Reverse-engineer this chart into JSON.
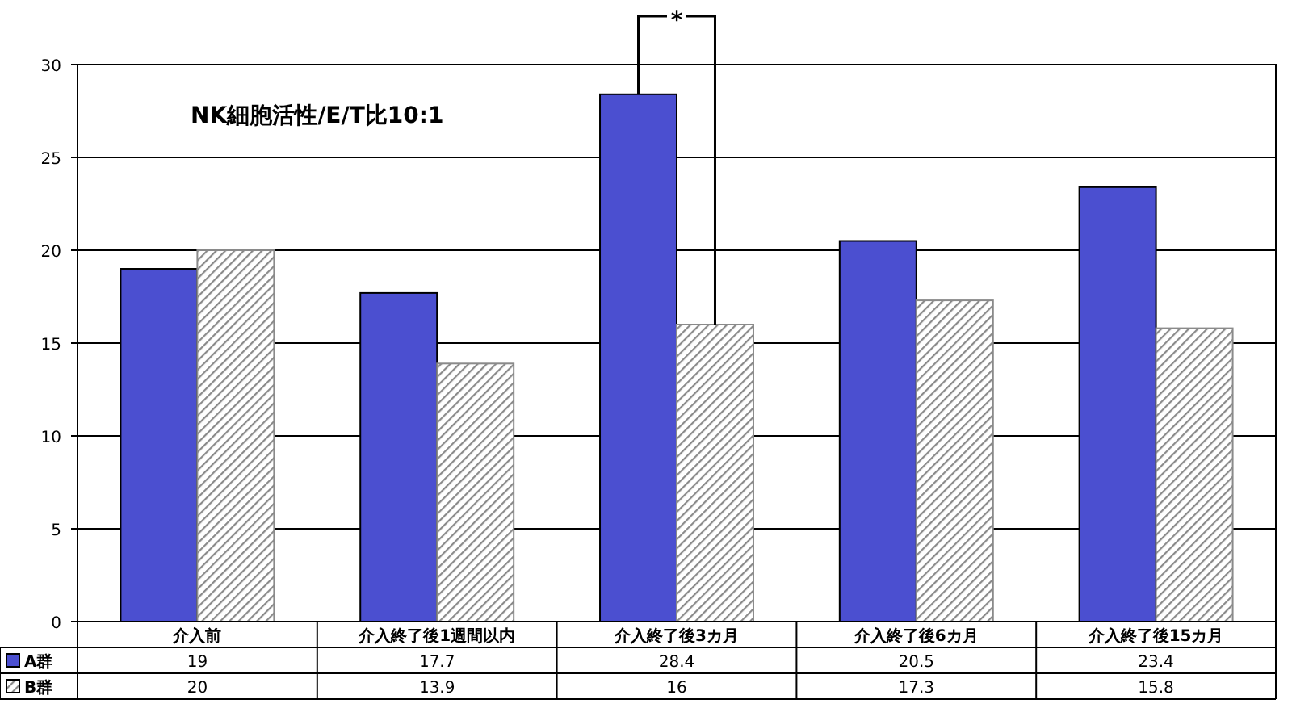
{
  "chart_data": {
    "type": "bar",
    "title": "NK細胞活性/E/T比10:1",
    "categories": [
      "介入前",
      "介入終了後1週間以内",
      "介入終了後3カ月",
      "介入終了後6カ月",
      "介入終了後15カ月"
    ],
    "series": [
      {
        "name": "A群",
        "color": "#4b4fd0",
        "values": [
          19,
          17.7,
          28.4,
          20.5,
          23.4
        ]
      },
      {
        "name": "B群",
        "color": "#8a8a8a",
        "values": [
          20,
          13.9,
          16,
          17.3,
          15.8
        ]
      }
    ],
    "ylim": [
      0,
      30
    ],
    "yticks": [
      0,
      5,
      10,
      15,
      20,
      25,
      30
    ],
    "grid": "y",
    "legend": "bottom left",
    "data_labels": true,
    "annotations": [
      {
        "text": "*",
        "x": "介入終了後3カ月",
        "y": 28.4
      }
    ]
  }
}
